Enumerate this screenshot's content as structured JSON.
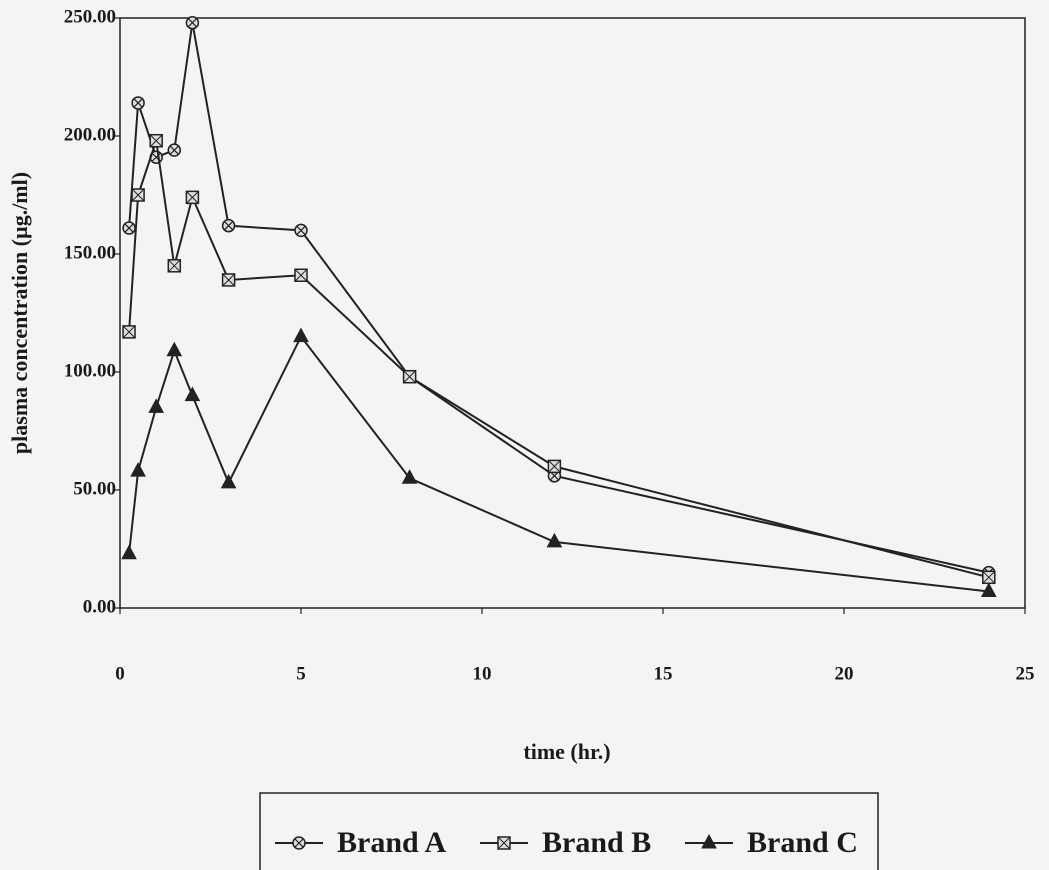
{
  "chart_data": {
    "type": "line",
    "x_label": "time (hr.)",
    "y_label": "plasma concentration (µg./ml)",
    "xlim": [
      0,
      25
    ],
    "xticks": [
      0,
      5,
      10,
      15,
      20,
      25
    ],
    "ylim": [
      0,
      250
    ],
    "yticks": [
      {
        "value": 0,
        "label": "0.00"
      },
      {
        "value": 50,
        "label": "50.00"
      },
      {
        "value": 100,
        "label": "100.00"
      },
      {
        "value": 150,
        "label": "150.00"
      },
      {
        "value": 200,
        "label": "200.00"
      },
      {
        "value": 250,
        "label": "250.00"
      }
    ],
    "grid": false,
    "legend": "bottom",
    "x": [
      0.25,
      0.5,
      1,
      1.5,
      2,
      3,
      5,
      8,
      12,
      24
    ],
    "series": [
      {
        "name": "Brand A",
        "color": "#222222",
        "marker": "circle",
        "values": [
          161,
          214,
          191,
          194,
          248,
          162,
          160,
          98,
          56,
          15
        ]
      },
      {
        "name": "Brand B",
        "color": "#222222",
        "marker": "square",
        "values": [
          117,
          175,
          198,
          145,
          174,
          139,
          141,
          98,
          60,
          13
        ]
      },
      {
        "name": "Brand C",
        "color": "#222222",
        "marker": "triangle",
        "values": [
          23,
          58,
          85,
          109,
          90,
          53,
          115,
          55,
          28,
          7
        ]
      }
    ]
  }
}
